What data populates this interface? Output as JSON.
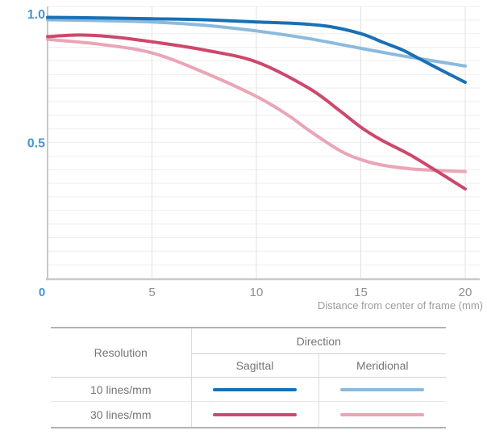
{
  "chart_data": {
    "type": "line",
    "title": "",
    "xlabel": "Distance from center of frame (mm)",
    "ylabel": "",
    "xlim": [
      0,
      20
    ],
    "ylim": [
      0,
      1.0
    ],
    "x_ticks": [
      {
        "value": 0,
        "label": "0",
        "accent": true
      },
      {
        "value": 5,
        "label": "5"
      },
      {
        "value": 10,
        "label": "10"
      },
      {
        "value": 15,
        "label": "15"
      },
      {
        "value": 20,
        "label": "20"
      }
    ],
    "y_ticks": [
      {
        "value": 1.0,
        "label": "1.0"
      },
      {
        "value": 0.5,
        "label": "0.5"
      }
    ],
    "grid": {
      "y_minor_step": 0.05,
      "x_lines": [
        5,
        10,
        15,
        20
      ],
      "grid_on": true
    },
    "legend_position": "bottom-table",
    "series": [
      {
        "name": "10 lines/mm Sagittal",
        "resolution": "10 lines/mm",
        "direction": "Sagittal",
        "color": "#1a70b4",
        "x": [
          0,
          2.5,
          5,
          7.5,
          10,
          12,
          13.5,
          15,
          16,
          17,
          17.5,
          18,
          19,
          20
        ],
        "values": [
          0.96,
          0.958,
          0.955,
          0.951,
          0.943,
          0.937,
          0.926,
          0.9,
          0.87,
          0.84,
          0.82,
          0.8,
          0.76,
          0.721
        ]
      },
      {
        "name": "10 lines/mm Meridional",
        "resolution": "10 lines/mm",
        "direction": "Meridional",
        "color": "#8cbade",
        "x": [
          0,
          2.5,
          5,
          7.5,
          10,
          12.5,
          15,
          17,
          17.5,
          20
        ],
        "values": [
          0.951,
          0.948,
          0.943,
          0.931,
          0.91,
          0.882,
          0.846,
          0.818,
          0.812,
          0.781
        ]
      },
      {
        "name": "30 lines/mm Sagittal",
        "resolution": "30 lines/mm",
        "direction": "Sagittal",
        "color": "#cd486c",
        "x": [
          0,
          1.5,
          3,
          5,
          7.5,
          10,
          12.5,
          14,
          15,
          16,
          17.5,
          20
        ],
        "values": [
          0.889,
          0.895,
          0.889,
          0.87,
          0.84,
          0.796,
          0.7,
          0.616,
          0.556,
          0.508,
          0.448,
          0.329
        ]
      },
      {
        "name": "30 lines/mm Meridional",
        "resolution": "30 lines/mm",
        "direction": "Meridional",
        "color": "#eaa5b6",
        "x": [
          0,
          2.5,
          5,
          7.5,
          10,
          11.5,
          12.5,
          14,
          15,
          16,
          17.5,
          19,
          20
        ],
        "values": [
          0.879,
          0.861,
          0.829,
          0.757,
          0.669,
          0.601,
          0.545,
          0.47,
          0.437,
          0.417,
          0.402,
          0.396,
          0.393
        ]
      }
    ]
  },
  "legend_table": {
    "resolution_header": "Resolution",
    "direction_header": "Direction",
    "col_sagittal": "Sagittal",
    "col_meridional": "Meridional",
    "rows": [
      {
        "resolution": "10 lines/mm"
      },
      {
        "resolution": "30 lines/mm"
      }
    ]
  },
  "colors": {
    "label_blue": "#4697d2",
    "tick_gray": "#8f8f8f",
    "title_gray": "#9c9c9c",
    "axis_line": "#c9c9c9",
    "grid_h": "#eeeeee",
    "grid_v": "#e2e2e2"
  }
}
